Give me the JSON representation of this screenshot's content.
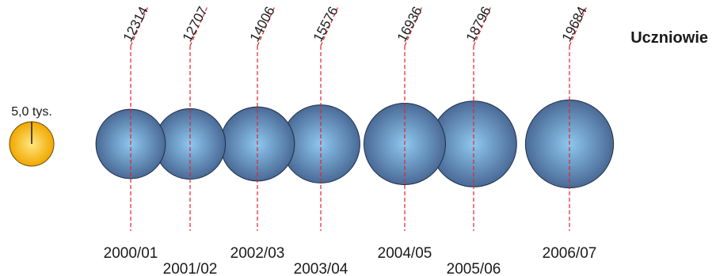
{
  "chart_data": {
    "type": "bubble",
    "title": "Uczniowie",
    "categories": [
      "2000/01",
      "2001/02",
      "2002/03",
      "2003/04",
      "2004/05",
      "2005/06",
      "2006/07"
    ],
    "values": [
      12314,
      12707,
      14006,
      15576,
      16936,
      18796,
      19684
    ],
    "legend": {
      "label": "5,0 tys.",
      "value": 5000
    },
    "colors": {
      "bubble_center": "#8ec8ef",
      "bubble_edge": "#4a6a96",
      "bubble_stroke": "#1f2f48",
      "guide_line": "#e8202a",
      "legend_center": "#ffe680",
      "legend_edge": "#f0a800"
    }
  }
}
